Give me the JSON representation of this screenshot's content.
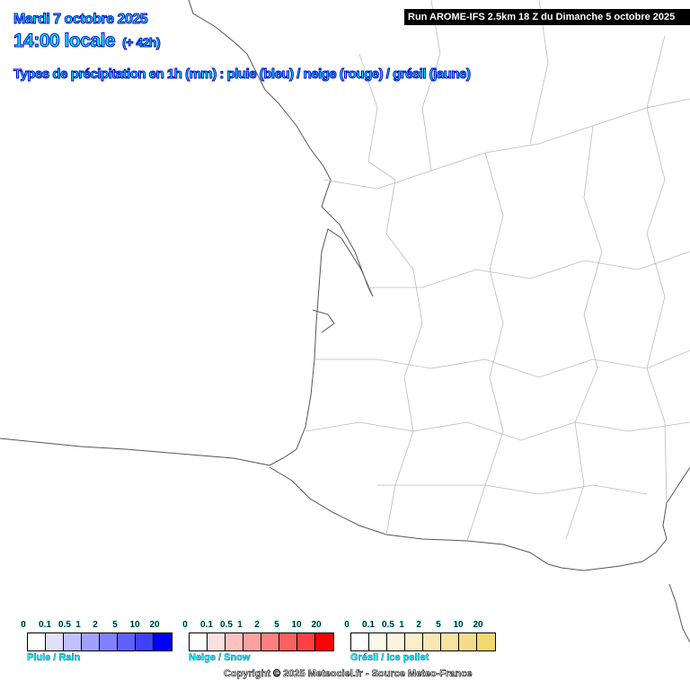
{
  "header": {
    "date": "Mardi 7 octobre 2025",
    "time": "14:00 locale",
    "lead": "(+ 42h)",
    "subtitle": "Types de précipitation en 1h (mm) : pluie (bleu) / neige (rouge) / grésil (jaune)",
    "run": "Run AROME-IFS 2.5km 18 Z du Dimanche 5 octobre 2025"
  },
  "legend": {
    "ticks": [
      "0",
      "0.1",
      "0.5",
      "1",
      "2",
      "5",
      "10",
      "20"
    ],
    "scales": [
      {
        "label": "Pluie / Rain",
        "colors": [
          "#ffffff",
          "#e0e0fc",
          "#c0c0ff",
          "#a0a0ff",
          "#8080ff",
          "#6060ff",
          "#4040ff",
          "#0000ff"
        ]
      },
      {
        "label": "Neige / Snow",
        "colors": [
          "#ffffff",
          "#ffe0e0",
          "#ffc0c0",
          "#ffa0a0",
          "#ff8080",
          "#ff6060",
          "#ff4040",
          "#ff0000"
        ]
      },
      {
        "label": "Grésil / Ice pellet",
        "colors": [
          "#ffffff",
          "#fdf8e8",
          "#fcf4dc",
          "#fbeec8",
          "#f9e8b4",
          "#f7e2a0",
          "#f5dc8c",
          "#f3d870"
        ]
      }
    ]
  },
  "copyright": "Copyright © 2025 Meteociel.fr - Source Meteo-France"
}
